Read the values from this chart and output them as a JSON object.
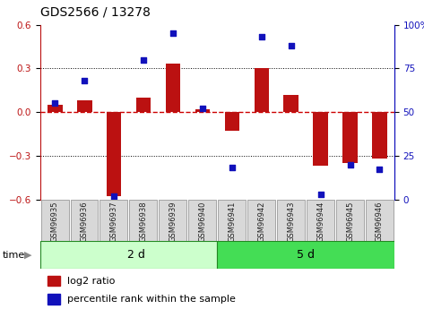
{
  "title": "GDS2566 / 13278",
  "samples": [
    "GSM96935",
    "GSM96936",
    "GSM96937",
    "GSM96938",
    "GSM96939",
    "GSM96940",
    "GSM96941",
    "GSM96942",
    "GSM96943",
    "GSM96944",
    "GSM96945",
    "GSM96946"
  ],
  "log2_ratio": [
    0.05,
    0.08,
    -0.58,
    0.1,
    0.33,
    0.02,
    -0.13,
    0.3,
    0.12,
    -0.37,
    -0.35,
    -0.32
  ],
  "percentile_rank": [
    55,
    68,
    2,
    80,
    95,
    52,
    18,
    93,
    88,
    3,
    20,
    17
  ],
  "group_labels": [
    "2 d",
    "5 d"
  ],
  "group_split": 6,
  "bar_color": "#BB1111",
  "dot_color": "#1111BB",
  "ylim_left": [
    -0.6,
    0.6
  ],
  "ylim_right": [
    0,
    100
  ],
  "yticks_left": [
    -0.6,
    -0.3,
    0.0,
    0.3,
    0.6
  ],
  "yticks_right": [
    0,
    25,
    50,
    75,
    100
  ],
  "ytick_labels_right": [
    "0",
    "25",
    "50",
    "75",
    "100%"
  ],
  "hline_color": "#CC0000",
  "legend_log2": "log2 ratio",
  "legend_pct": "percentile rank within the sample",
  "group_color_left": "#CCFFCC",
  "group_color_right": "#44DD55",
  "bar_width": 0.5
}
